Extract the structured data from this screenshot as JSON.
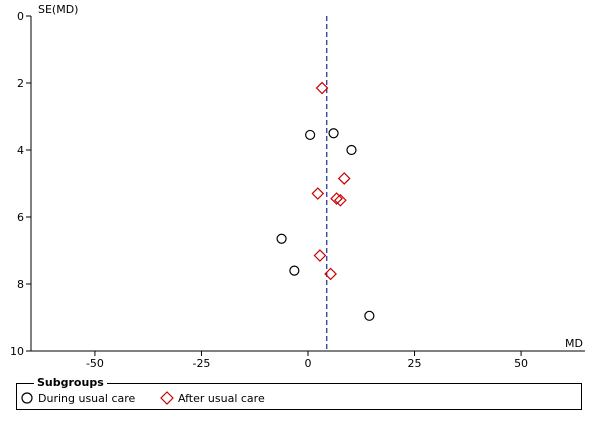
{
  "chart_data": {
    "type": "scatter",
    "title": "",
    "xlabel": "MD",
    "ylabel": "SE(MD)",
    "xlim": [
      -65,
      65
    ],
    "ylim": [
      0,
      10
    ],
    "y_inverted": true,
    "x_ticks": [
      -50,
      -25,
      0,
      25,
      50
    ],
    "y_ticks": [
      0,
      2,
      4,
      6,
      8,
      10
    ],
    "reference_line_x": 4.4,
    "legend_title": "Subgroups",
    "legend_placement": "bottom",
    "series": [
      {
        "name": "During usual care",
        "marker": "circle",
        "color": "#000000",
        "points": [
          {
            "x": 0.5,
            "y": 3.55
          },
          {
            "x": 6.0,
            "y": 3.5
          },
          {
            "x": 10.2,
            "y": 4.0
          },
          {
            "x": -6.2,
            "y": 6.65
          },
          {
            "x": -3.2,
            "y": 7.6
          },
          {
            "x": 14.4,
            "y": 8.95
          }
        ]
      },
      {
        "name": "After usual care",
        "marker": "diamond",
        "color": "#cc0000",
        "points": [
          {
            "x": 3.3,
            "y": 2.15
          },
          {
            "x": 8.5,
            "y": 4.85
          },
          {
            "x": 2.3,
            "y": 5.3
          },
          {
            "x": 6.7,
            "y": 5.45
          },
          {
            "x": 7.6,
            "y": 5.5
          },
          {
            "x": 2.8,
            "y": 7.15
          },
          {
            "x": 5.3,
            "y": 7.7
          }
        ]
      }
    ]
  }
}
